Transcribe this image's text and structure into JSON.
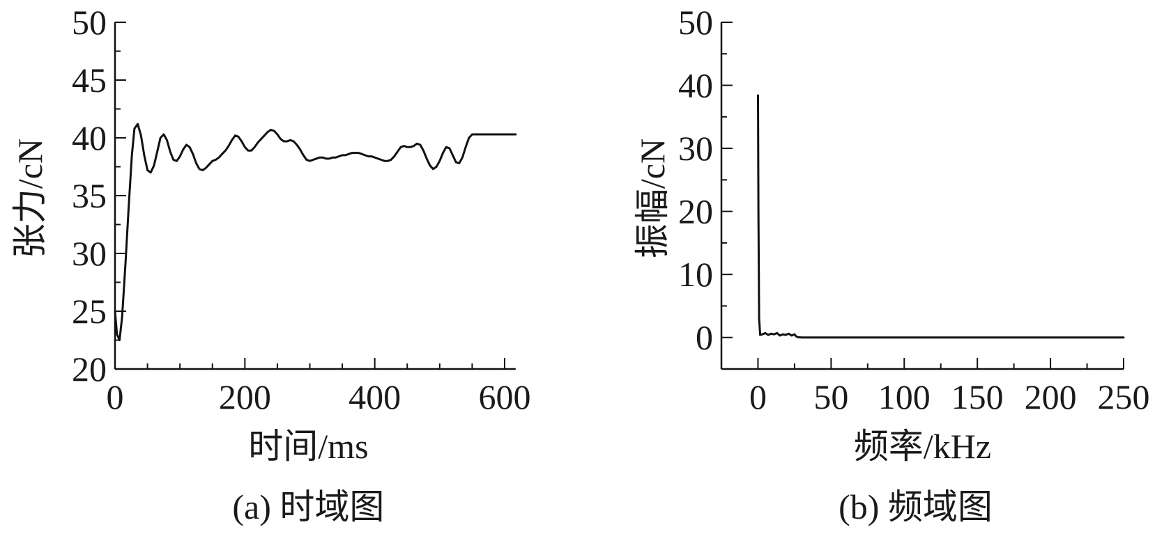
{
  "chart_data": [
    {
      "type": "line",
      "caption": "(a) 时域图",
      "xlabel": "时间/ms",
      "ylabel": "张力/cN",
      "xlim": [
        0,
        600
      ],
      "ylim": [
        20,
        50
      ],
      "xticks": [
        0,
        200,
        400,
        600
      ],
      "yticks": [
        20,
        25,
        30,
        35,
        40,
        45,
        50
      ],
      "x_end": 617,
      "color": "#111111",
      "series": [
        {
          "x": [
            0,
            3,
            7,
            11,
            16,
            21,
            26,
            30,
            35,
            40,
            45,
            50,
            55,
            60,
            65,
            70,
            75,
            80,
            85,
            90,
            95,
            100,
            105,
            110,
            115,
            120,
            125,
            130,
            135,
            140,
            145,
            150,
            155,
            160,
            165,
            170,
            175,
            180,
            185,
            190,
            195,
            200,
            205,
            210,
            215,
            220,
            225,
            230,
            235,
            240,
            245,
            250,
            255,
            260,
            265,
            270,
            275,
            280,
            285,
            290,
            295,
            300,
            305,
            310,
            315,
            320,
            325,
            330,
            335,
            340,
            345,
            350,
            355,
            360,
            365,
            370,
            375,
            380,
            385,
            390,
            395,
            400,
            405,
            410,
            415,
            420,
            425,
            430,
            435,
            440,
            445,
            450,
            455,
            460,
            465,
            470,
            475,
            480,
            485,
            490,
            495,
            500,
            505,
            510,
            515,
            520,
            525,
            530,
            535,
            540,
            545,
            550,
            555,
            560,
            565,
            570,
            575,
            580,
            585,
            590,
            595,
            600,
            605,
            610,
            617
          ],
          "y": [
            25.0,
            23.0,
            22.5,
            24.5,
            29.0,
            34.0,
            38.5,
            40.8,
            41.2,
            40.2,
            38.5,
            37.2,
            37.0,
            37.6,
            38.8,
            40.0,
            40.3,
            39.8,
            38.8,
            38.1,
            38.0,
            38.4,
            39.0,
            39.4,
            39.2,
            38.6,
            37.8,
            37.3,
            37.2,
            37.4,
            37.7,
            38.0,
            38.1,
            38.3,
            38.6,
            38.9,
            39.3,
            39.8,
            40.2,
            40.1,
            39.7,
            39.2,
            38.9,
            38.9,
            39.2,
            39.6,
            39.9,
            40.2,
            40.5,
            40.7,
            40.6,
            40.3,
            39.9,
            39.7,
            39.7,
            39.8,
            39.7,
            39.4,
            39.0,
            38.5,
            38.1,
            38.0,
            38.1,
            38.2,
            38.3,
            38.3,
            38.2,
            38.2,
            38.3,
            38.3,
            38.4,
            38.5,
            38.5,
            38.6,
            38.7,
            38.7,
            38.7,
            38.6,
            38.5,
            38.4,
            38.4,
            38.3,
            38.2,
            38.1,
            38.0,
            38.0,
            38.1,
            38.4,
            38.8,
            39.2,
            39.3,
            39.2,
            39.2,
            39.3,
            39.5,
            39.4,
            38.9,
            38.2,
            37.6,
            37.3,
            37.5,
            38.0,
            38.7,
            39.2,
            39.1,
            38.5,
            37.9,
            37.8,
            38.3,
            39.2,
            40.0,
            40.3,
            40.3,
            40.3,
            40.3,
            40.3,
            40.3,
            40.3,
            40.3,
            40.3,
            40.3,
            40.3,
            40.3,
            40.3,
            40.3
          ]
        }
      ]
    },
    {
      "type": "line",
      "caption": "(b) 频域图",
      "xlabel": "频率/kHz",
      "ylabel": "振幅/cN",
      "xlim": [
        -25,
        250
      ],
      "ylim": [
        -5,
        50
      ],
      "xticks": [
        0,
        50,
        100,
        150,
        200,
        250
      ],
      "yticks": [
        0,
        10,
        20,
        30,
        40,
        50
      ],
      "color": "#111111",
      "series": [
        {
          "x": [
            0,
            0.3,
            0.8,
            1.5,
            3,
            5,
            7,
            9,
            11,
            13,
            15,
            17,
            19,
            21,
            23,
            25,
            26,
            27,
            30,
            50,
            100,
            150,
            200,
            250
          ],
          "y": [
            38.4,
            20.0,
            3.0,
            0.4,
            0.5,
            0.7,
            0.4,
            0.6,
            0.5,
            0.7,
            0.3,
            0.5,
            0.4,
            0.6,
            0.3,
            0.5,
            0.2,
            0.05,
            0.0,
            0.0,
            0.0,
            0.0,
            0.0,
            0.0
          ]
        }
      ]
    }
  ]
}
